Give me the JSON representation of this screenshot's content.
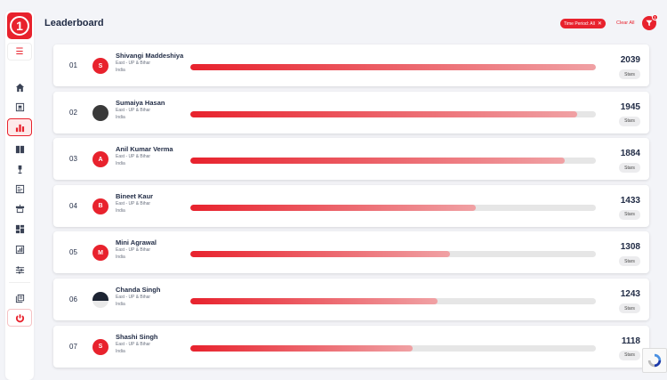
{
  "header": {
    "title": "Leaderboard",
    "filter_chip": "Time Period: All",
    "clear_all": "Clear All",
    "filter_count": "1"
  },
  "sidebar": {
    "logo_text": "1",
    "items": [
      {
        "icon": "home-icon"
      },
      {
        "icon": "contact-card-icon"
      },
      {
        "icon": "bar-chart-icon",
        "active": true
      },
      {
        "icon": "book-icon"
      },
      {
        "icon": "trophy-icon"
      },
      {
        "icon": "checklist-icon"
      },
      {
        "icon": "gift-icon"
      },
      {
        "icon": "dashboard-icon"
      },
      {
        "icon": "report-icon"
      },
      {
        "icon": "sliders-icon"
      },
      {
        "icon": "library-icon"
      },
      {
        "icon": "power-icon"
      }
    ]
  },
  "leaderboard": [
    {
      "rank": "01",
      "initial": "S",
      "name": "Shivangi Maddeshiya",
      "region": "East - UP & Bihar",
      "country": "India",
      "score": "2039",
      "unit": "Stars",
      "progress": 1.0,
      "photo": false
    },
    {
      "rank": "02",
      "initial": "",
      "name": "Sumaiya Hasan",
      "region": "East - UP & Bihar",
      "country": "India",
      "score": "1945",
      "unit": "Stars",
      "progress": 0.954,
      "photo": true
    },
    {
      "rank": "03",
      "initial": "A",
      "name": "Anil Kumar Verma",
      "region": "East - UP & Bihar",
      "country": "India",
      "score": "1884",
      "unit": "Stars",
      "progress": 0.924,
      "photo": false
    },
    {
      "rank": "04",
      "initial": "B",
      "name": "Bineet Kaur",
      "region": "East - UP & Bihar",
      "country": "India",
      "score": "1433",
      "unit": "Stars",
      "progress": 0.703,
      "photo": false
    },
    {
      "rank": "05",
      "initial": "M",
      "name": "Mini Agrawal",
      "region": "East - UP & Bihar",
      "country": "India",
      "score": "1308",
      "unit": "Stars",
      "progress": 0.641,
      "photo": false
    },
    {
      "rank": "06",
      "initial": "",
      "name": "Chanda Singh",
      "region": "East - UP & Bihar",
      "country": "India",
      "score": "1243",
      "unit": "Stars",
      "progress": 0.61,
      "photo": true
    },
    {
      "rank": "07",
      "initial": "S",
      "name": "Shashi Singh",
      "region": "East - UP & Bihar",
      "country": "India",
      "score": "1118",
      "unit": "Stars",
      "progress": 0.548,
      "photo": false
    }
  ],
  "colors": {
    "accent": "#e8222d",
    "text": "#1f2a44",
    "background": "#f3f4f8"
  }
}
